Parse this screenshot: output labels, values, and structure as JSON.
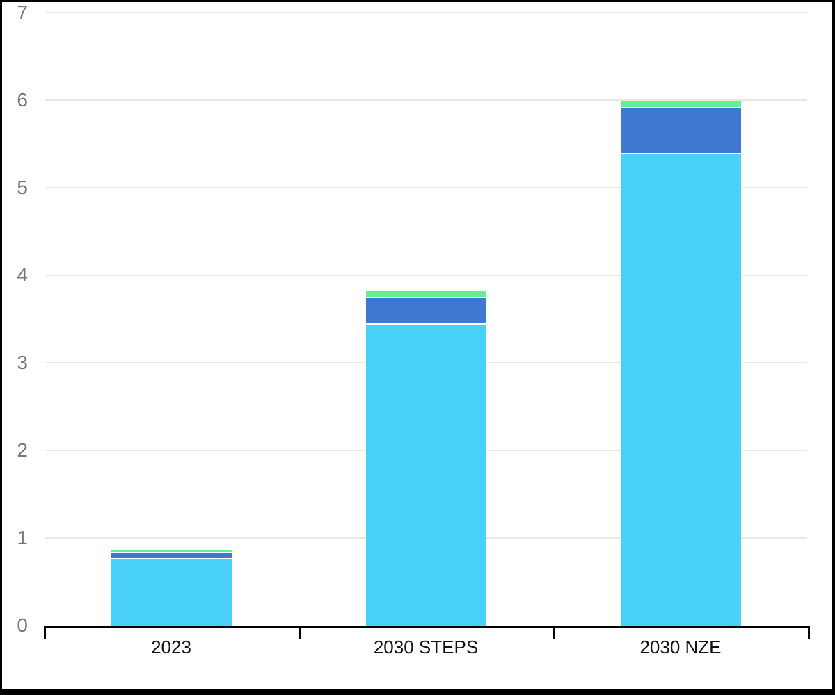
{
  "chart_data": {
    "type": "bar",
    "stacked": true,
    "title": "",
    "xlabel": "",
    "ylabel": "",
    "categories": [
      "2023",
      "2030 STEPS",
      "2030 NZE"
    ],
    "series": [
      {
        "name": "series-1-cyan",
        "color": "#4AD1FA",
        "values": [
          0.75,
          3.44,
          5.38
        ]
      },
      {
        "name": "series-2-blue",
        "color": "#3E78D2",
        "values": [
          0.07,
          0.3,
          0.52
        ]
      },
      {
        "name": "series-3-green",
        "color": "#66EF92",
        "values": [
          0.03,
          0.08,
          0.09
        ]
      }
    ],
    "totals": [
      0.85,
      3.82,
      5.99
    ],
    "ylim": [
      0,
      7
    ],
    "y_ticks": [
      "0",
      "1",
      "2",
      "3",
      "4",
      "5",
      "6",
      "7"
    ],
    "grid": "horizontal",
    "legend": "none",
    "segment_gap_color": "#ffffff"
  },
  "colors": {
    "background": "#ffffff",
    "frame_border": "#000000",
    "gridline": "#E8E8E8",
    "axis_line": "#000000",
    "y_label_text": "#757575",
    "x_label_text": "#111111"
  }
}
